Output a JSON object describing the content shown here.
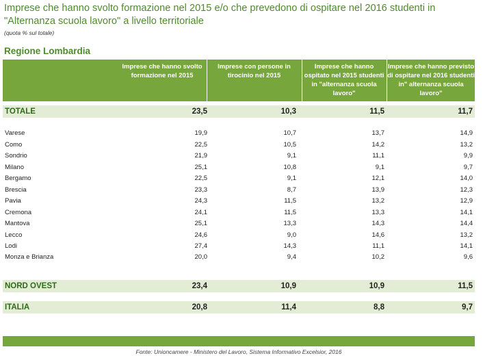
{
  "title": "Imprese che hanno svolto formazione nel 2015 e/o che prevedono di ospitare nel 2016 studenti in \"Alternanza scuola lavoro\" a livello territoriale",
  "subtitle": "(quota % sul totale)",
  "region": "Regione Lombardia",
  "columns": [
    "Imprese che hanno svolto formazione nel 2015",
    "Imprese con persone in tirocinio nel 2015",
    "Imprese che hanno ospitato nel 2015 studenti in \"alternanza scuola lavoro\"",
    "Imprese che hanno previsto di ospitare nel 2016 studenti in\" alternanza scuola lavoro\""
  ],
  "totale": {
    "label": "TOTALE",
    "values": [
      "23,5",
      "10,3",
      "11,5",
      "11,7"
    ]
  },
  "provinces": [
    {
      "label": "Varese",
      "values": [
        "19,9",
        "10,7",
        "13,7",
        "14,9"
      ]
    },
    {
      "label": "Como",
      "values": [
        "22,5",
        "10,5",
        "14,2",
        "13,2"
      ]
    },
    {
      "label": "Sondrio",
      "values": [
        "21,9",
        "9,1",
        "11,1",
        "9,9"
      ]
    },
    {
      "label": "Milano",
      "values": [
        "25,1",
        "10,8",
        "9,1",
        "9,7"
      ]
    },
    {
      "label": "Bergamo",
      "values": [
        "22,5",
        "9,1",
        "12,1",
        "14,0"
      ]
    },
    {
      "label": "Brescia",
      "values": [
        "23,3",
        "8,7",
        "13,9",
        "12,3"
      ]
    },
    {
      "label": "Pavia",
      "values": [
        "24,3",
        "11,5",
        "13,2",
        "12,9"
      ]
    },
    {
      "label": "Cremona",
      "values": [
        "24,1",
        "11,5",
        "13,3",
        "14,1"
      ]
    },
    {
      "label": "Mantova",
      "values": [
        "25,1",
        "13,3",
        "14,3",
        "14,4"
      ]
    },
    {
      "label": "Lecco",
      "values": [
        "24,6",
        "9,0",
        "14,6",
        "13,2"
      ]
    },
    {
      "label": "Lodi",
      "values": [
        "27,4",
        "14,3",
        "11,1",
        "14,1"
      ]
    },
    {
      "label": "Monza e Brianza",
      "values": [
        "20,0",
        "9,4",
        "10,2",
        "9,6"
      ]
    }
  ],
  "nord_ovest": {
    "label": "NORD OVEST",
    "values": [
      "23,4",
      "10,9",
      "10,9",
      "11,5"
    ]
  },
  "italia": {
    "label": "ITALIA",
    "values": [
      "20,8",
      "11,4",
      "8,8",
      "9,7"
    ]
  },
  "source": "Fonte: Unioncamere - Ministero del Lavoro, Sistema Informativo Excelsior, 2016"
}
